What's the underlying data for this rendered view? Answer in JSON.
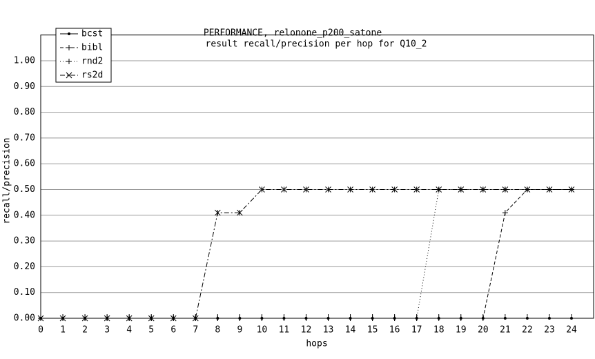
{
  "chart_data": {
    "type": "line",
    "title": "PERFORMANCE, relonone_p200_satone",
    "subtitle": "result recall/precision per hop for Q10_2",
    "x_label": "hops",
    "y_label": "recall/precision",
    "x": [
      0,
      1,
      2,
      3,
      4,
      5,
      6,
      7,
      8,
      9,
      10,
      11,
      12,
      13,
      14,
      15,
      16,
      17,
      18,
      19,
      20,
      21,
      22,
      23,
      24
    ],
    "series": [
      {
        "name": "bcst",
        "color": "#000000",
        "style": "solid",
        "marker": "dot",
        "values": [
          0,
          0,
          0,
          0,
          0,
          0,
          0,
          0,
          0,
          0,
          0,
          0,
          0,
          0,
          0,
          0,
          0,
          0,
          0,
          0,
          0,
          0,
          0,
          0,
          0
        ]
      },
      {
        "name": "bibl",
        "color": "#000000",
        "style": "dashed",
        "marker": "plus",
        "values": [
          0,
          0,
          0,
          0,
          0,
          0,
          0,
          0,
          0,
          0,
          0,
          0,
          0,
          0,
          0,
          0,
          0,
          0,
          0,
          0,
          0,
          0.41,
          0.5,
          0.5,
          0.5
        ]
      },
      {
        "name": "rnd2",
        "color": "#000000",
        "style": "dotted",
        "marker": "plus",
        "values": [
          0,
          0,
          0,
          0,
          0,
          0,
          0,
          0,
          0,
          0,
          0,
          0,
          0,
          0,
          0,
          0,
          0,
          0,
          0.5,
          0.5,
          0.5,
          0.5,
          0.5,
          0.5,
          0.5
        ]
      },
      {
        "name": "rs2d",
        "color": "#000000",
        "style": "dashdot",
        "marker": "star",
        "values": [
          0,
          0,
          0,
          0,
          0,
          0,
          0,
          0,
          0.41,
          0.41,
          0.5,
          0.5,
          0.5,
          0.5,
          0.5,
          0.5,
          0.5,
          0.5,
          0.5,
          0.5,
          0.5,
          0.5,
          0.5,
          0.5,
          0.5
        ]
      }
    ],
    "xlim": [
      0,
      25
    ],
    "xticks": [
      0,
      1,
      2,
      3,
      4,
      5,
      6,
      7,
      8,
      9,
      10,
      11,
      12,
      13,
      14,
      15,
      16,
      17,
      18,
      19,
      20,
      21,
      22,
      23,
      24
    ],
    "ylim": [
      0,
      1.1
    ],
    "yticks": [
      {
        "value": 0,
        "label": "0.00"
      },
      {
        "value": 0.1,
        "label": "0.10"
      },
      {
        "value": 0.2,
        "label": "0.20"
      },
      {
        "value": 0.3,
        "label": "0.30"
      },
      {
        "value": 0.4,
        "label": "0.40"
      },
      {
        "value": 0.5,
        "label": "0.50"
      },
      {
        "value": 0.6,
        "label": "0.60"
      },
      {
        "value": 0.7,
        "label": "0.70"
      },
      {
        "value": 0.8,
        "label": "0.80"
      },
      {
        "value": 0.9,
        "label": "0.90"
      },
      {
        "value": 1,
        "label": "1.00"
      }
    ],
    "grid": true,
    "legend": "upper left"
  }
}
